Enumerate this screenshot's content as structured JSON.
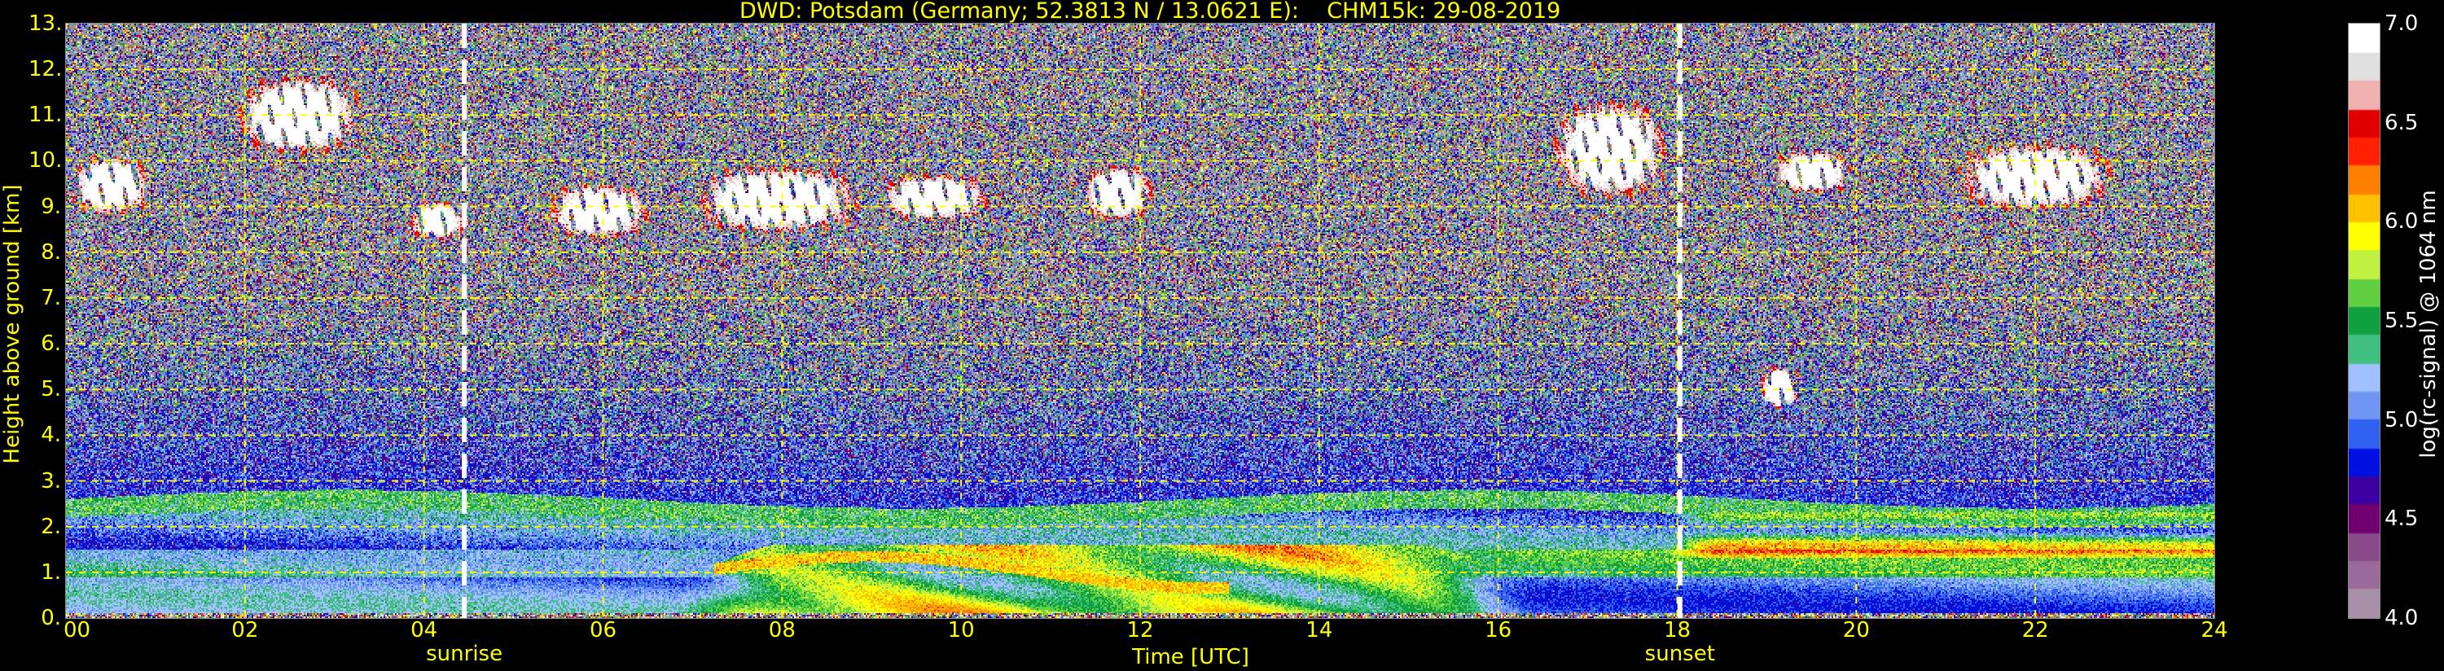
{
  "chart_data": {
    "type": "heatmap",
    "title": "DWD: Potsdam (Germany; 52.3813 N / 13.0621 E):    CHM15k: 29-08-2019",
    "xlabel": "Time [UTC]",
    "ylabel": "Height above ground [km]",
    "xlim": [
      0,
      24
    ],
    "ylim": [
      0,
      13
    ],
    "xticks": [
      "00",
      "02",
      "04",
      "06",
      "08",
      "10",
      "12",
      "14",
      "16",
      "18",
      "20",
      "22",
      "24"
    ],
    "yticks": [
      "0.",
      "1.",
      "2.",
      "3.",
      "4.",
      "5.",
      "6.",
      "7.",
      "8.",
      "9.",
      "10.",
      "11.",
      "12.",
      "13."
    ],
    "grid": true,
    "grid_color": "#ffff00",
    "colorbar": {
      "label": "log(rc-signal) @ 1064 nm",
      "range": [
        4.0,
        7.0
      ],
      "ticks": [
        "7.0",
        "6.5",
        "6.0",
        "5.5",
        "5.0",
        "4.5",
        "4.0"
      ],
      "colors": [
        "#a890a8",
        "#9a6a9a",
        "#8a4a8a",
        "#700070",
        "#3a00a0",
        "#0010e0",
        "#3060f0",
        "#6f95f5",
        "#a0c0ff",
        "#40c080",
        "#10a040",
        "#60d040",
        "#c0f040",
        "#ffff00",
        "#ffc000",
        "#ff8000",
        "#ff2000",
        "#e00000",
        "#f0b0b0",
        "#e0e0e0",
        "#ffffff"
      ]
    },
    "annotations": [
      {
        "label": "sunrise",
        "time_utc": 4.45
      },
      {
        "label": "sunset",
        "time_utc": 18.03
      }
    ],
    "cloud_layers_km": [
      {
        "t": [
          0.0,
          1.0
        ],
        "h": [
          8.7,
          10.2
        ]
      },
      {
        "t": [
          1.8,
          3.4
        ],
        "h": [
          10.0,
          12.0
        ]
      },
      {
        "t": [
          3.8,
          4.5
        ],
        "h": [
          8.2,
          9.2
        ]
      },
      {
        "t": [
          5.3,
          6.6
        ],
        "h": [
          8.2,
          9.6
        ]
      },
      {
        "t": [
          6.9,
          9.0
        ],
        "h": [
          8.3,
          10.0
        ]
      },
      {
        "t": [
          9.0,
          10.4
        ],
        "h": [
          8.6,
          9.8
        ]
      },
      {
        "t": [
          11.3,
          12.2
        ],
        "h": [
          8.6,
          10.0
        ]
      },
      {
        "t": [
          16.5,
          18.0
        ],
        "h": [
          9.0,
          11.5
        ]
      },
      {
        "t": [
          19.0,
          20.0
        ],
        "h": [
          9.2,
          10.3
        ]
      },
      {
        "t": [
          21.0,
          23.0
        ],
        "h": [
          8.8,
          10.5
        ]
      },
      {
        "t": [
          18.9,
          19.4
        ],
        "h": [
          4.5,
          5.6
        ]
      }
    ]
  }
}
